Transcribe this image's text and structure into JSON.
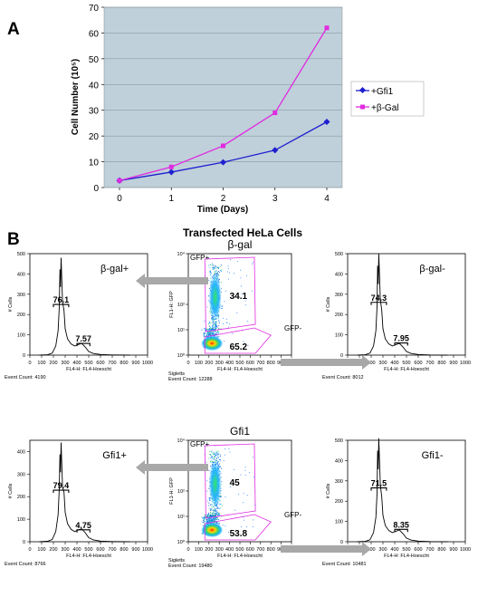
{
  "panel_a": {
    "label": "A",
    "chart_data": {
      "type": "line",
      "x": [
        0,
        1,
        2,
        3,
        4
      ],
      "series": [
        {
          "name": "+Gfi1",
          "values": [
            2.7,
            6,
            9.8,
            14.5,
            25.5
          ],
          "color": "#1f1fcf",
          "marker": "diamond"
        },
        {
          "name": "+β-Gal",
          "values": [
            2.7,
            8,
            16.2,
            29,
            62
          ],
          "color": "#e02be0",
          "marker": "square"
        }
      ],
      "xlabel": "Time (Days)",
      "ylabel": "Cell Number (10⁵)",
      "xticks": [
        "0",
        "1",
        "2",
        "3",
        "4"
      ],
      "yticks": [
        "0",
        "10",
        "20",
        "30",
        "40",
        "50",
        "60",
        "70"
      ],
      "ylim": [
        0,
        70
      ],
      "plot_background": "#bfd0da",
      "legend": "right"
    }
  },
  "panel_b": {
    "label": "B",
    "title": "Transfected HeLa Cells",
    "rows": [
      {
        "dot_title": "β-gal",
        "left_hist": {
          "label": "β-gal+",
          "peak1": "76.1",
          "peak2": "7.57",
          "yticks": [
            "0",
            "100",
            "200",
            "300",
            "400",
            "500"
          ],
          "ymax": 500,
          "peak_height": 480,
          "event_count": "Event Count: 4190"
        },
        "right_hist": {
          "label": "β-gal-",
          "peak1": "74.3",
          "peak2": "7.95",
          "yticks": [
            "0",
            "100",
            "200",
            "300",
            "400",
            "500"
          ],
          "ymax": 500,
          "peak_height": 500,
          "event_count": "Event Count: 8012"
        },
        "dot_plot": {
          "gfp_pos": "GFP+",
          "gfp_neg": "GFP-",
          "val_pos": "34.1",
          "val_neg": "65.2",
          "gate": "Sigletts",
          "event_count": "Event Count: 12288"
        }
      },
      {
        "dot_title": "Gfi1",
        "left_hist": {
          "label": "Gfi1+",
          "peak1": "79.4",
          "peak2": "4.75",
          "yticks": [
            "0",
            "100",
            "200",
            "300",
            "400"
          ],
          "ymax": 450,
          "peak_height": 440,
          "event_count": "Event Count: 8766"
        },
        "right_hist": {
          "label": "Gfi1-",
          "peak1": "71.5",
          "peak2": "8.35",
          "yticks": [
            "0",
            "100",
            "200",
            "300",
            "400",
            "500"
          ],
          "ymax": 500,
          "peak_height": 510,
          "event_count": "Event Count: 10481"
        },
        "dot_plot": {
          "gfp_pos": "GFP+",
          "gfp_neg": "GFP-",
          "val_pos": "45",
          "val_neg": "53.8",
          "gate": "Sigletts",
          "event_count": "Event Count: 19480"
        }
      }
    ],
    "hist_ylabel": "# Cells",
    "hist_xlabel": "FL4-H: FL4-Hoescht",
    "dot_xlabel": "FL4-H: FL4-Hoescht",
    "dot_ylabel": "FL1-H: GFP",
    "x_ticks": [
      "0",
      "100",
      "200",
      "300",
      "400",
      "500",
      "600",
      "700",
      "800",
      "900",
      "1000"
    ],
    "dot_yticks": [
      "10⁰",
      "10¹",
      "10²",
      "10³",
      "10⁴"
    ]
  }
}
